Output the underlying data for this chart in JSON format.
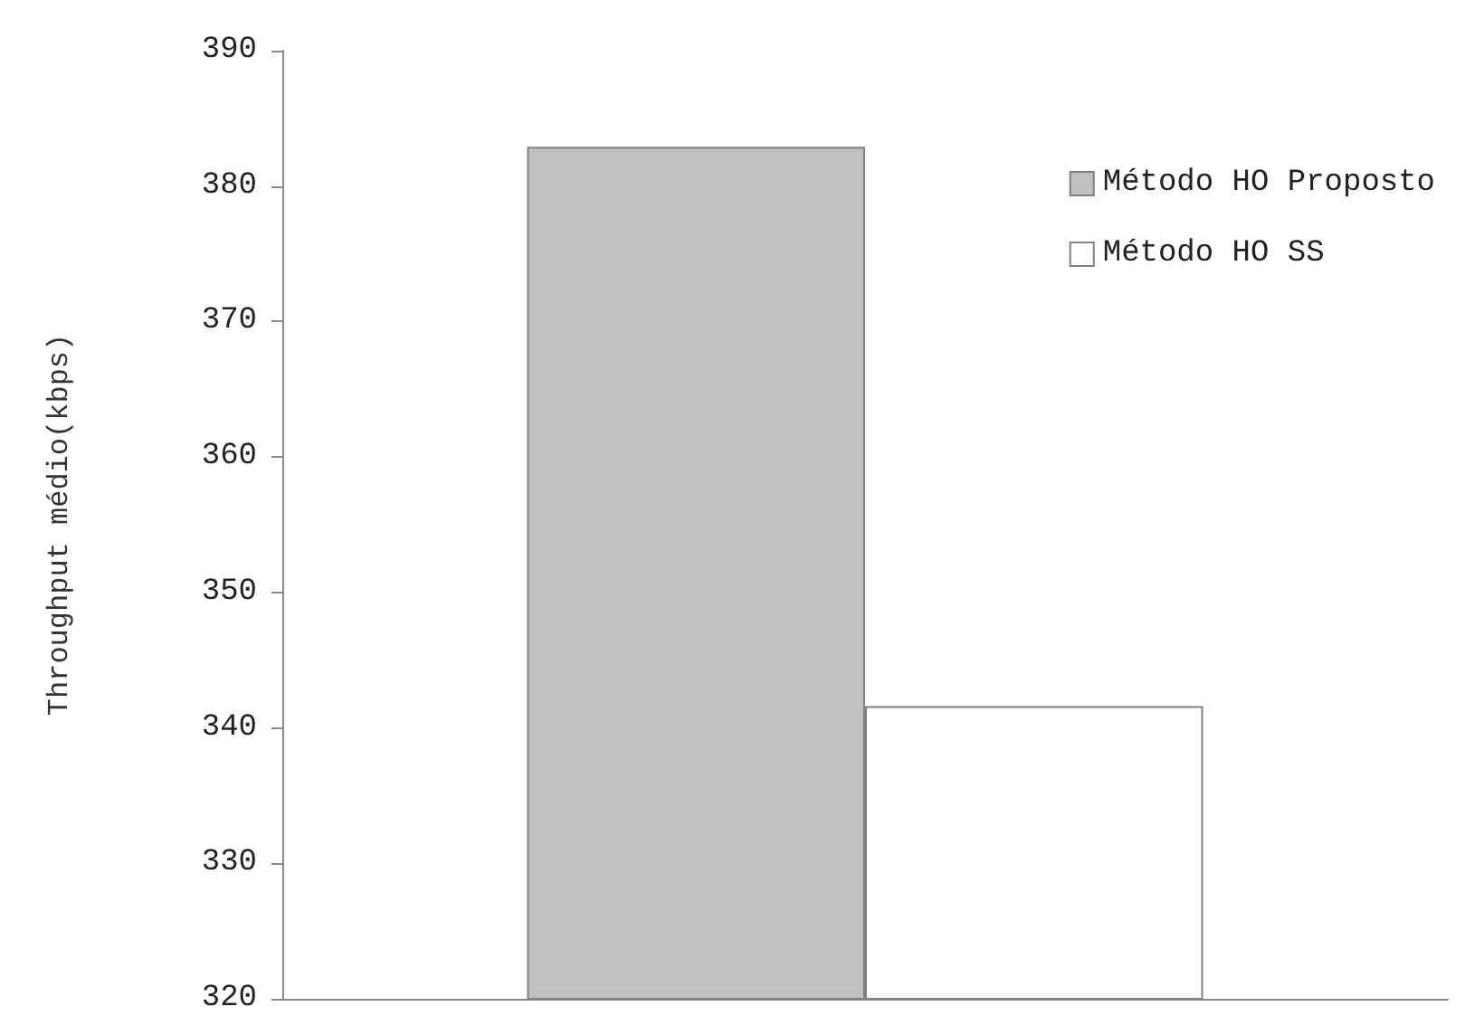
{
  "chart_data": {
    "type": "bar",
    "ylabel": "Throughput médio(kbps)",
    "categories": [
      null
    ],
    "series": [
      {
        "name": "Método HO Proposto",
        "color": "#c0c0c0",
        "values": [
          382.9
        ]
      },
      {
        "name": "Método HO SS",
        "color": "#ffffff",
        "values": [
          341.6
        ]
      }
    ],
    "ylim": [
      320,
      390
    ],
    "yticks": [
      320,
      330,
      340,
      350,
      360,
      370,
      380,
      390
    ],
    "grid": false,
    "legend": "top right"
  }
}
